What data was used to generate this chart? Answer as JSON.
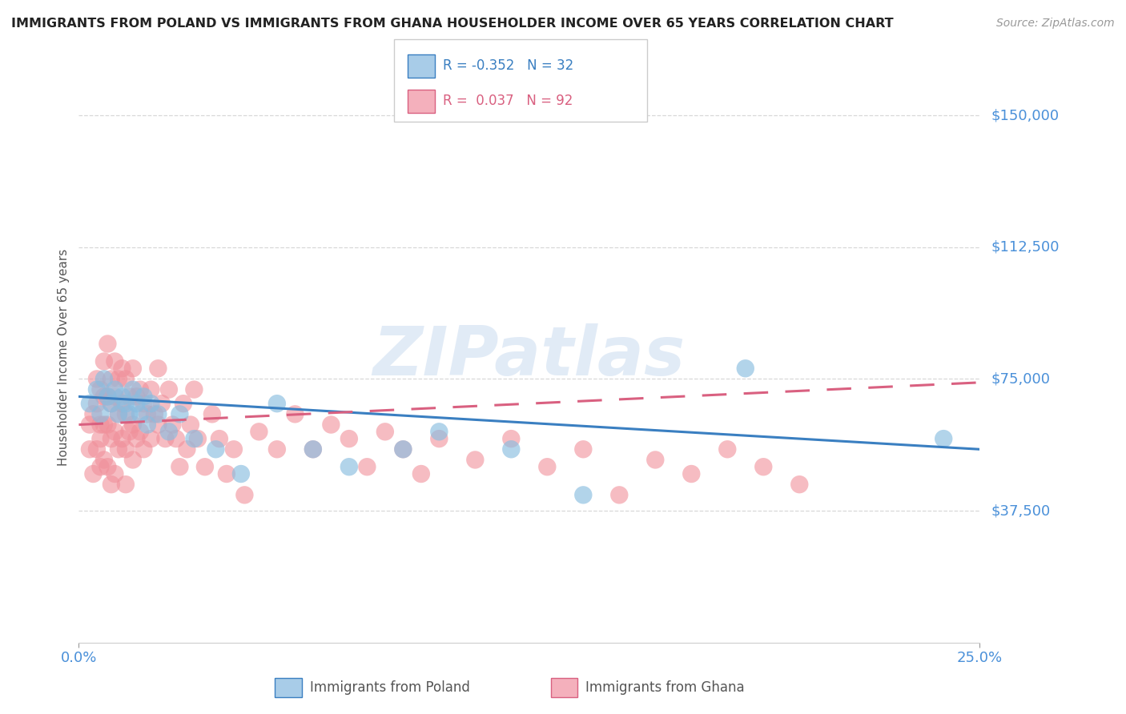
{
  "title": "IMMIGRANTS FROM POLAND VS IMMIGRANTS FROM GHANA HOUSEHOLDER INCOME OVER 65 YEARS CORRELATION CHART",
  "source": "Source: ZipAtlas.com",
  "ylabel": "Householder Income Over 65 years",
  "xlim": [
    0.0,
    0.25
  ],
  "ylim": [
    0,
    162500
  ],
  "background_color": "#ffffff",
  "grid_color": "#d8d8d8",
  "poland_color": "#89bde0",
  "ghana_color": "#f0909a",
  "poland_line_color": "#3a7fc1",
  "ghana_line_color": "#d96080",
  "poland_legend_color": "#3a7fc1",
  "ghana_legend_color": "#d96080",
  "poland_swatch_color": "#a8cce8",
  "ghana_swatch_color": "#f4b0bc",
  "ytick_values": [
    37500,
    75000,
    112500,
    150000
  ],
  "ytick_labels": [
    "$37,500",
    "$75,000",
    "$112,500",
    "$150,000"
  ],
  "xtick_values": [
    0.0,
    0.25
  ],
  "xtick_labels": [
    "0.0%",
    "25.0%"
  ],
  "poland_R": -0.352,
  "poland_N": 32,
  "ghana_R": 0.037,
  "ghana_N": 92,
  "poland_trend_x": [
    0.0,
    0.25
  ],
  "poland_trend_y": [
    70000,
    55000
  ],
  "ghana_trend_x": [
    0.0,
    0.25
  ],
  "ghana_trend_y": [
    62000,
    74000
  ],
  "poland_scatter_x": [
    0.003,
    0.005,
    0.006,
    0.007,
    0.008,
    0.009,
    0.01,
    0.011,
    0.012,
    0.013,
    0.014,
    0.015,
    0.016,
    0.017,
    0.018,
    0.019,
    0.02,
    0.022,
    0.025,
    0.028,
    0.032,
    0.038,
    0.045,
    0.055,
    0.065,
    0.075,
    0.09,
    0.1,
    0.12,
    0.14,
    0.185,
    0.24
  ],
  "poland_scatter_y": [
    68000,
    72000,
    65000,
    75000,
    70000,
    68000,
    72000,
    65000,
    70000,
    68000,
    65000,
    72000,
    68000,
    65000,
    70000,
    62000,
    68000,
    65000,
    60000,
    65000,
    58000,
    55000,
    48000,
    68000,
    55000,
    50000,
    55000,
    60000,
    55000,
    42000,
    78000,
    58000
  ],
  "ghana_scatter_x": [
    0.003,
    0.003,
    0.004,
    0.004,
    0.005,
    0.005,
    0.005,
    0.006,
    0.006,
    0.006,
    0.006,
    0.007,
    0.007,
    0.007,
    0.007,
    0.008,
    0.008,
    0.008,
    0.008,
    0.009,
    0.009,
    0.009,
    0.009,
    0.01,
    0.01,
    0.01,
    0.01,
    0.011,
    0.011,
    0.011,
    0.012,
    0.012,
    0.012,
    0.013,
    0.013,
    0.013,
    0.013,
    0.014,
    0.014,
    0.015,
    0.015,
    0.015,
    0.016,
    0.016,
    0.017,
    0.017,
    0.018,
    0.018,
    0.019,
    0.02,
    0.02,
    0.021,
    0.022,
    0.022,
    0.023,
    0.024,
    0.025,
    0.026,
    0.027,
    0.028,
    0.029,
    0.03,
    0.031,
    0.032,
    0.033,
    0.035,
    0.037,
    0.039,
    0.041,
    0.043,
    0.046,
    0.05,
    0.055,
    0.06,
    0.065,
    0.07,
    0.075,
    0.08,
    0.085,
    0.09,
    0.095,
    0.1,
    0.11,
    0.12,
    0.13,
    0.14,
    0.15,
    0.16,
    0.17,
    0.18,
    0.19,
    0.2
  ],
  "ghana_scatter_y": [
    62000,
    55000,
    65000,
    48000,
    68000,
    75000,
    55000,
    72000,
    62000,
    58000,
    50000,
    80000,
    70000,
    62000,
    52000,
    85000,
    70000,
    62000,
    50000,
    75000,
    68000,
    58000,
    45000,
    80000,
    70000,
    60000,
    48000,
    75000,
    65000,
    55000,
    78000,
    68000,
    58000,
    75000,
    65000,
    55000,
    45000,
    70000,
    60000,
    78000,
    62000,
    52000,
    70000,
    58000,
    72000,
    60000,
    68000,
    55000,
    65000,
    72000,
    58000,
    65000,
    78000,
    62000,
    68000,
    58000,
    72000,
    62000,
    58000,
    50000,
    68000,
    55000,
    62000,
    72000,
    58000,
    50000,
    65000,
    58000,
    48000,
    55000,
    42000,
    60000,
    55000,
    65000,
    55000,
    62000,
    58000,
    50000,
    60000,
    55000,
    48000,
    58000,
    52000,
    58000,
    50000,
    55000,
    42000,
    52000,
    48000,
    55000,
    50000,
    45000
  ],
  "watermark_text": "ZIPatlas",
  "watermark_color": "#c5d8ee",
  "watermark_alpha": 0.5,
  "watermark_fontsize": 62
}
